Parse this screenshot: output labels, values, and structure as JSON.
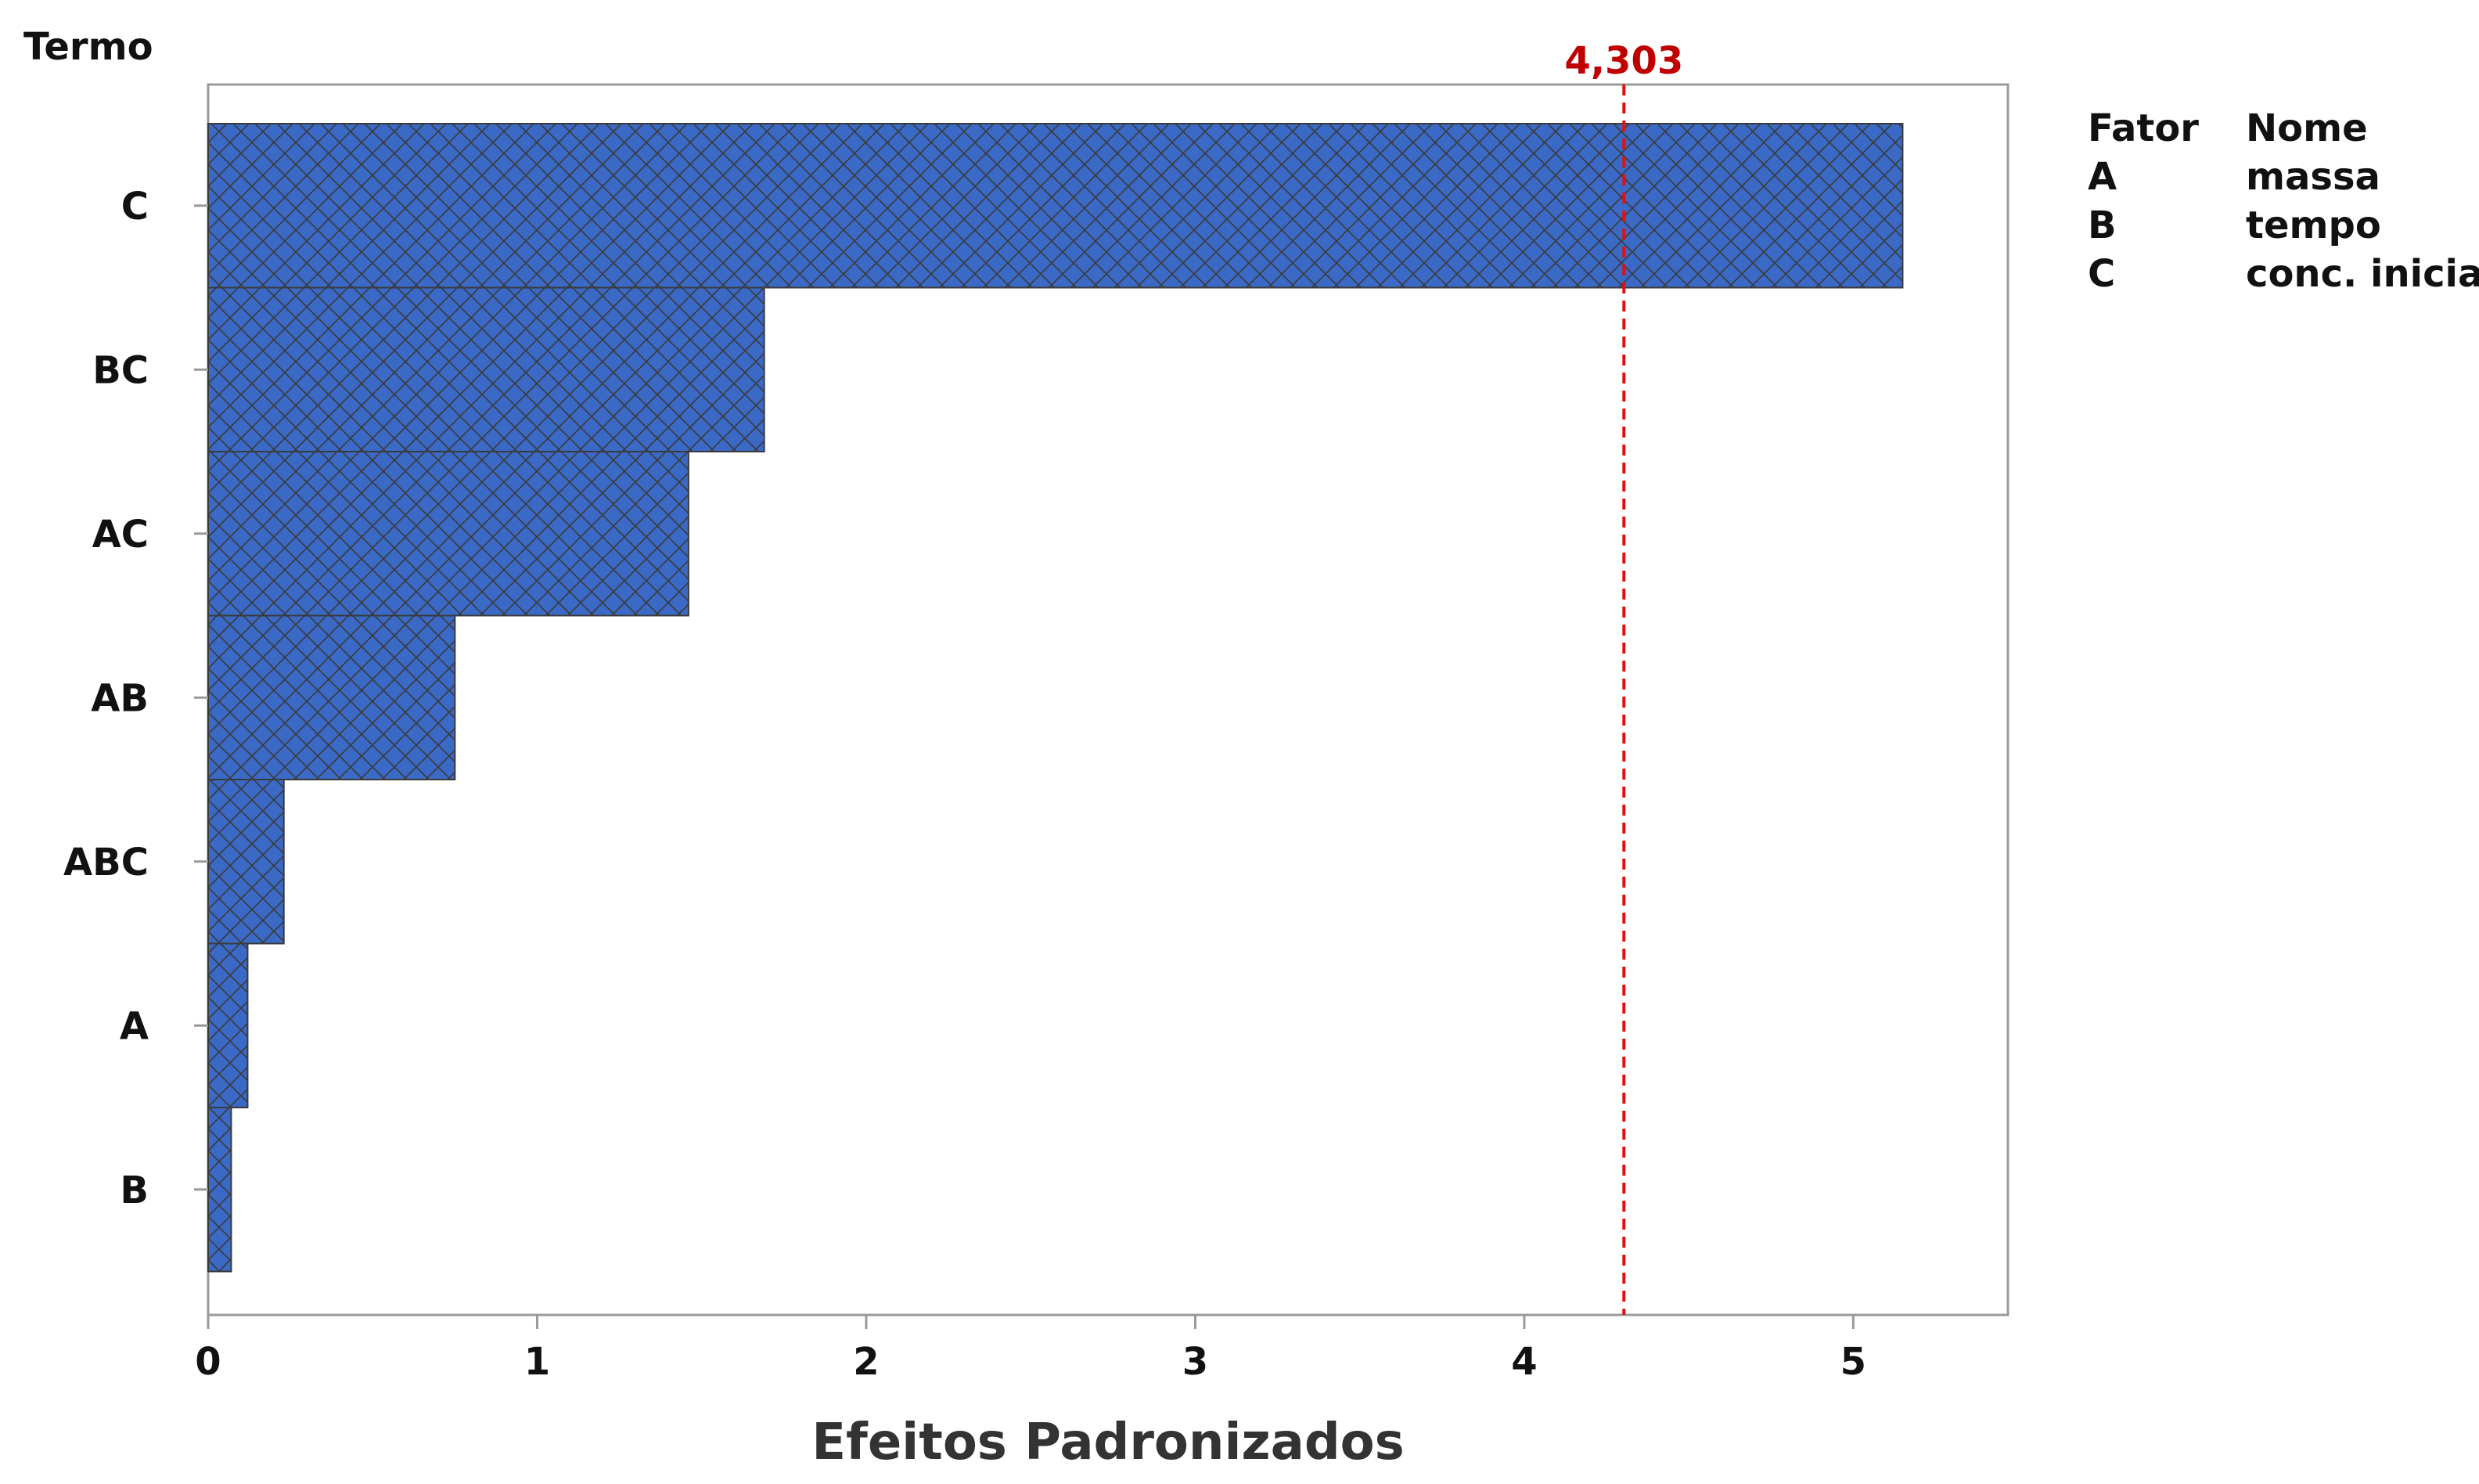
{
  "chart_data": {
    "type": "bar",
    "orientation": "horizontal",
    "categories": [
      "C",
      "BC",
      "AC",
      "AB",
      "ABC",
      "A",
      "B"
    ],
    "values": [
      5.15,
      1.69,
      1.46,
      0.75,
      0.23,
      0.12,
      0.07
    ],
    "xlabel": "Efeitos Padronizados",
    "ylabel": "Termo",
    "xlim": [
      0,
      5.47
    ],
    "xticks": [
      "0",
      "1",
      "2",
      "3",
      "4",
      "5"
    ],
    "reference_line": {
      "value": 4.303,
      "label": "4,303",
      "color": "#d00000",
      "style": "dashed"
    },
    "bar_color": "#3a69c6",
    "bar_pattern": "crosshatch",
    "grid": false,
    "legend": {
      "position": "top-right",
      "headers": [
        "Fator",
        "Nome"
      ],
      "rows": [
        {
          "factor": "A",
          "name": "massa"
        },
        {
          "factor": "B",
          "name": "tempo"
        },
        {
          "factor": "C",
          "name": "conc. inicial"
        }
      ]
    }
  }
}
